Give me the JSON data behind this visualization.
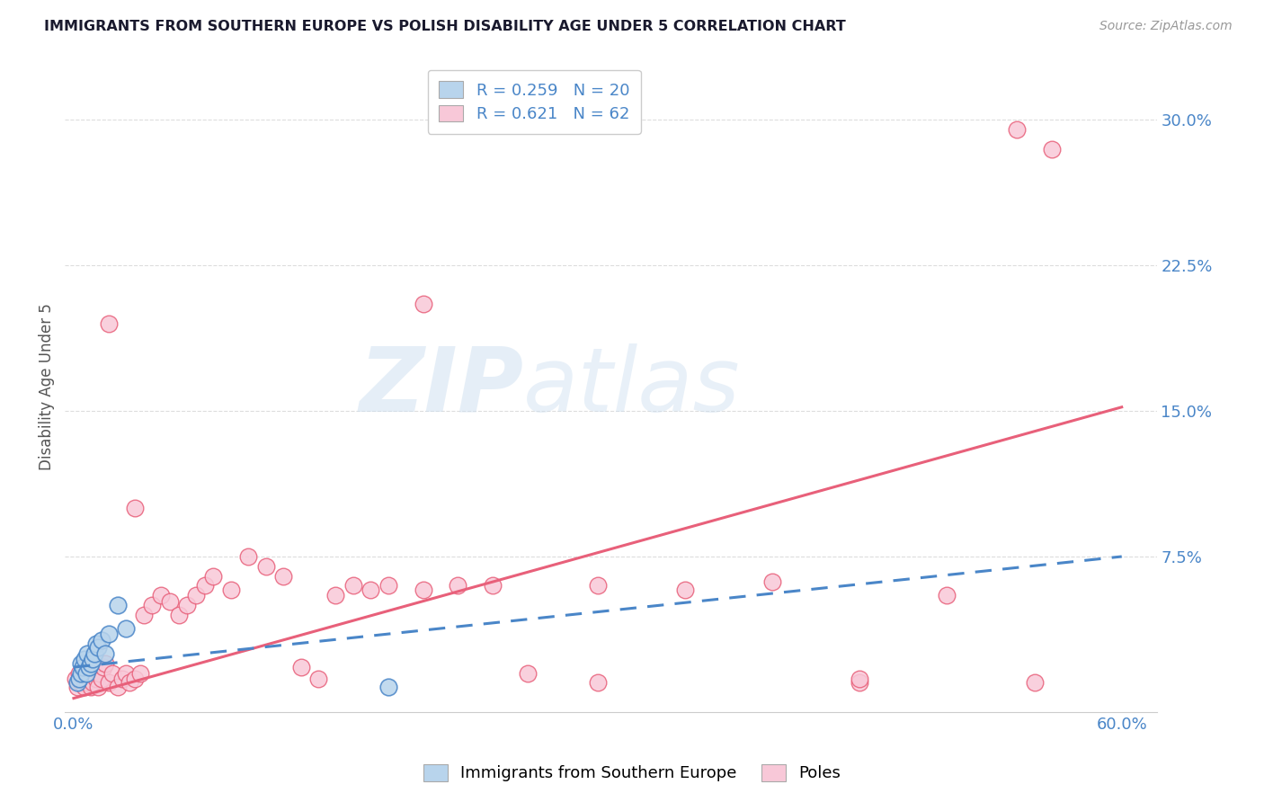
{
  "title": "IMMIGRANTS FROM SOUTHERN EUROPE VS POLISH DISABILITY AGE UNDER 5 CORRELATION CHART",
  "source": "Source: ZipAtlas.com",
  "ylabel": "Disability Age Under 5",
  "xlabel": "",
  "xlim": [
    -0.005,
    0.62
  ],
  "ylim": [
    -0.005,
    0.33
  ],
  "yticks": [
    0.075,
    0.15,
    0.225,
    0.3
  ],
  "ytick_labels": [
    "7.5%",
    "15.0%",
    "22.5%",
    "30.0%"
  ],
  "xtick_labels": [
    "0.0%",
    "60.0%"
  ],
  "xtick_positions": [
    0.0,
    0.6
  ],
  "legend_labels": [
    "Immigrants from Southern Europe",
    "Poles"
  ],
  "blue_R": "0.259",
  "blue_N": "20",
  "pink_R": "0.621",
  "pink_N": "62",
  "blue_color": "#b8d4ec",
  "blue_line_color": "#4a86c8",
  "pink_color": "#f8c8d8",
  "pink_line_color": "#e8607a",
  "blue_scatter_x": [
    0.002,
    0.003,
    0.004,
    0.004,
    0.005,
    0.006,
    0.007,
    0.008,
    0.009,
    0.01,
    0.011,
    0.012,
    0.013,
    0.014,
    0.016,
    0.018,
    0.02,
    0.025,
    0.03,
    0.18
  ],
  "blue_scatter_y": [
    0.01,
    0.012,
    0.015,
    0.02,
    0.018,
    0.022,
    0.015,
    0.025,
    0.018,
    0.02,
    0.022,
    0.025,
    0.03,
    0.028,
    0.032,
    0.025,
    0.035,
    0.05,
    0.038,
    0.008
  ],
  "pink_scatter_x": [
    0.001,
    0.002,
    0.003,
    0.004,
    0.005,
    0.006,
    0.007,
    0.008,
    0.009,
    0.01,
    0.011,
    0.012,
    0.013,
    0.014,
    0.015,
    0.016,
    0.017,
    0.018,
    0.02,
    0.022,
    0.025,
    0.028,
    0.03,
    0.032,
    0.035,
    0.038,
    0.04,
    0.045,
    0.05,
    0.055,
    0.06,
    0.065,
    0.07,
    0.075,
    0.08,
    0.09,
    0.1,
    0.11,
    0.12,
    0.13,
    0.14,
    0.15,
    0.16,
    0.17,
    0.18,
    0.2,
    0.22,
    0.24,
    0.26,
    0.3,
    0.35,
    0.4,
    0.45,
    0.5,
    0.54,
    0.56,
    0.2,
    0.3,
    0.45,
    0.55,
    0.02,
    0.035
  ],
  "pink_scatter_y": [
    0.012,
    0.008,
    0.015,
    0.01,
    0.012,
    0.008,
    0.015,
    0.01,
    0.012,
    0.008,
    0.01,
    0.015,
    0.012,
    0.008,
    0.015,
    0.012,
    0.018,
    0.02,
    0.01,
    0.015,
    0.008,
    0.012,
    0.015,
    0.01,
    0.012,
    0.015,
    0.045,
    0.05,
    0.055,
    0.052,
    0.045,
    0.05,
    0.055,
    0.06,
    0.065,
    0.058,
    0.075,
    0.07,
    0.065,
    0.018,
    0.012,
    0.055,
    0.06,
    0.058,
    0.06,
    0.058,
    0.06,
    0.06,
    0.015,
    0.06,
    0.058,
    0.062,
    0.01,
    0.055,
    0.295,
    0.285,
    0.205,
    0.01,
    0.012,
    0.01,
    0.195,
    0.1
  ],
  "pink_line_start_x": 0.0,
  "pink_line_start_y": 0.002,
  "pink_line_end_x": 0.6,
  "pink_line_end_y": 0.152,
  "blue_line_start_x": 0.0,
  "blue_line_start_y": 0.018,
  "blue_line_end_x": 0.6,
  "blue_line_end_y": 0.075,
  "watermark_zip_color": "#c5d8ec",
  "watermark_atlas_color": "#c5d8ec",
  "background_color": "#ffffff",
  "grid_color": "#dddddd",
  "title_color": "#1a1a2e",
  "source_color": "#999999",
  "axis_label_color": "#555555",
  "tick_label_color": "#4a86c8"
}
